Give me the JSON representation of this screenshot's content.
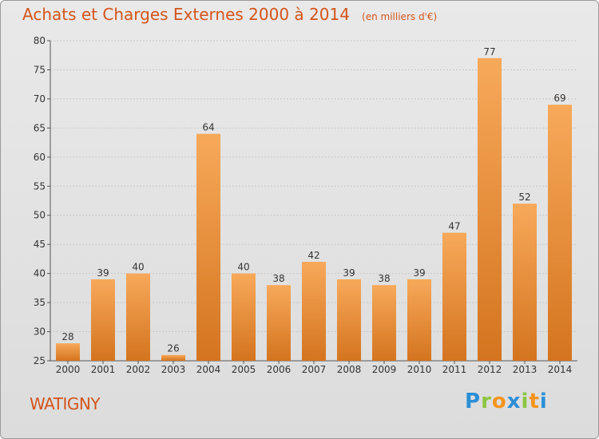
{
  "title": "Achats et Charges Externes 2000 à 2014",
  "subtitle": "(en milliers d'€)",
  "commune": "WATIGNY",
  "logo": {
    "text": "Proxiti",
    "letters": [
      {
        "ch": "P",
        "color": "#2b8fd6"
      },
      {
        "ch": "r",
        "color": "#8cc63f"
      },
      {
        "ch": "o",
        "color": "#f7941d"
      },
      {
        "ch": "x",
        "color": "#2b8fd6"
      },
      {
        "ch": "i",
        "color": "#8cc63f"
      },
      {
        "ch": "t",
        "color": "#f7941d"
      },
      {
        "ch": "i",
        "color": "#2b8fd6"
      }
    ]
  },
  "colors": {
    "bar_light": "#f7a95a",
    "bar_dark": "#d4741f",
    "title": "#d4541a",
    "grid": "#c8c8c8"
  },
  "chart_data": {
    "type": "bar",
    "categories": [
      "2000",
      "2001",
      "2002",
      "2003",
      "2004",
      "2005",
      "2006",
      "2007",
      "2008",
      "2009",
      "2010",
      "2011",
      "2012",
      "2013",
      "2014"
    ],
    "values": [
      28,
      39,
      40,
      26,
      64,
      40,
      38,
      42,
      39,
      38,
      39,
      47,
      77,
      52,
      69
    ],
    "ylim": [
      25,
      80
    ],
    "yticks": [
      25,
      30,
      35,
      40,
      45,
      50,
      55,
      60,
      65,
      70,
      75,
      80
    ],
    "grid": true
  }
}
